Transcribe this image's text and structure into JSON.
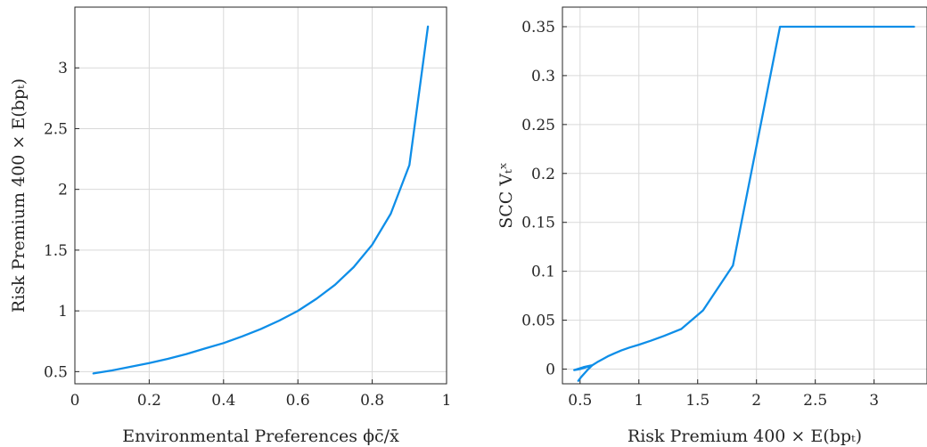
{
  "chart_data": [
    {
      "type": "line",
      "xlabel": "Environmental Preferences ϕc̄/x̄",
      "ylabel": "Risk Premium 400 × E(bpₜ)",
      "xlim": [
        0,
        1
      ],
      "ylim": [
        0.4,
        3.5
      ],
      "xticks": [
        0,
        0.2,
        0.4,
        0.6,
        0.8,
        1
      ],
      "xtick_labels": [
        "0",
        "0.2",
        "0.4",
        "0.6",
        "0.8",
        "1"
      ],
      "yticks": [
        0.5,
        1,
        1.5,
        2,
        2.5,
        3
      ],
      "ytick_labels": [
        "0.5",
        "1",
        "1.5",
        "2",
        "2.5",
        "3"
      ],
      "grid": true,
      "series": [
        {
          "color": "#0e8ee8",
          "x": [
            0.05,
            0.1,
            0.15,
            0.2,
            0.25,
            0.3,
            0.35,
            0.4,
            0.45,
            0.5,
            0.55,
            0.6,
            0.65,
            0.7,
            0.75,
            0.8,
            0.85,
            0.9,
            0.95
          ],
          "y": [
            0.485,
            0.51,
            0.54,
            0.57,
            0.605,
            0.645,
            0.69,
            0.735,
            0.79,
            0.85,
            0.92,
            1.0,
            1.1,
            1.215,
            1.36,
            1.545,
            1.8,
            2.2,
            3.34
          ]
        }
      ]
    },
    {
      "type": "line",
      "xlabel": "Risk Premium 400 × E(bpₜ)",
      "ylabel": "SCC Vₜˣ",
      "xlim": [
        0.35,
        3.45
      ],
      "ylim": [
        -0.015,
        0.37
      ],
      "xticks": [
        0.5,
        1,
        1.5,
        2,
        2.5,
        3
      ],
      "xtick_labels": [
        "0.5",
        "1",
        "1.5",
        "2",
        "2.5",
        "3"
      ],
      "yticks": [
        0,
        0.05,
        0.1,
        0.15,
        0.2,
        0.25,
        0.3,
        0.35
      ],
      "ytick_labels": [
        "0",
        "0.05",
        "0.1",
        "0.15",
        "0.2",
        "0.25",
        "0.3",
        "0.35"
      ],
      "grid": true,
      "series": [
        {
          "color": "#0e8ee8",
          "x": [
            0.485,
            0.51,
            0.54,
            0.57,
            0.605,
            0.5,
            0.45,
            0.53,
            0.605,
            0.645,
            0.69,
            0.735,
            0.79,
            0.85,
            0.92,
            1.0,
            1.1,
            1.215,
            1.36,
            1.545,
            1.8,
            2.2,
            3.34
          ],
          "y": [
            -0.012,
            -0.008,
            -0.004,
            0.0,
            0.004,
            0.0,
            -0.001,
            0.002,
            0.004,
            0.007,
            0.01,
            0.013,
            0.016,
            0.019,
            0.022,
            0.025,
            0.029,
            0.034,
            0.041,
            0.06,
            0.106,
            0.35,
            0.35
          ]
        }
      ]
    }
  ]
}
